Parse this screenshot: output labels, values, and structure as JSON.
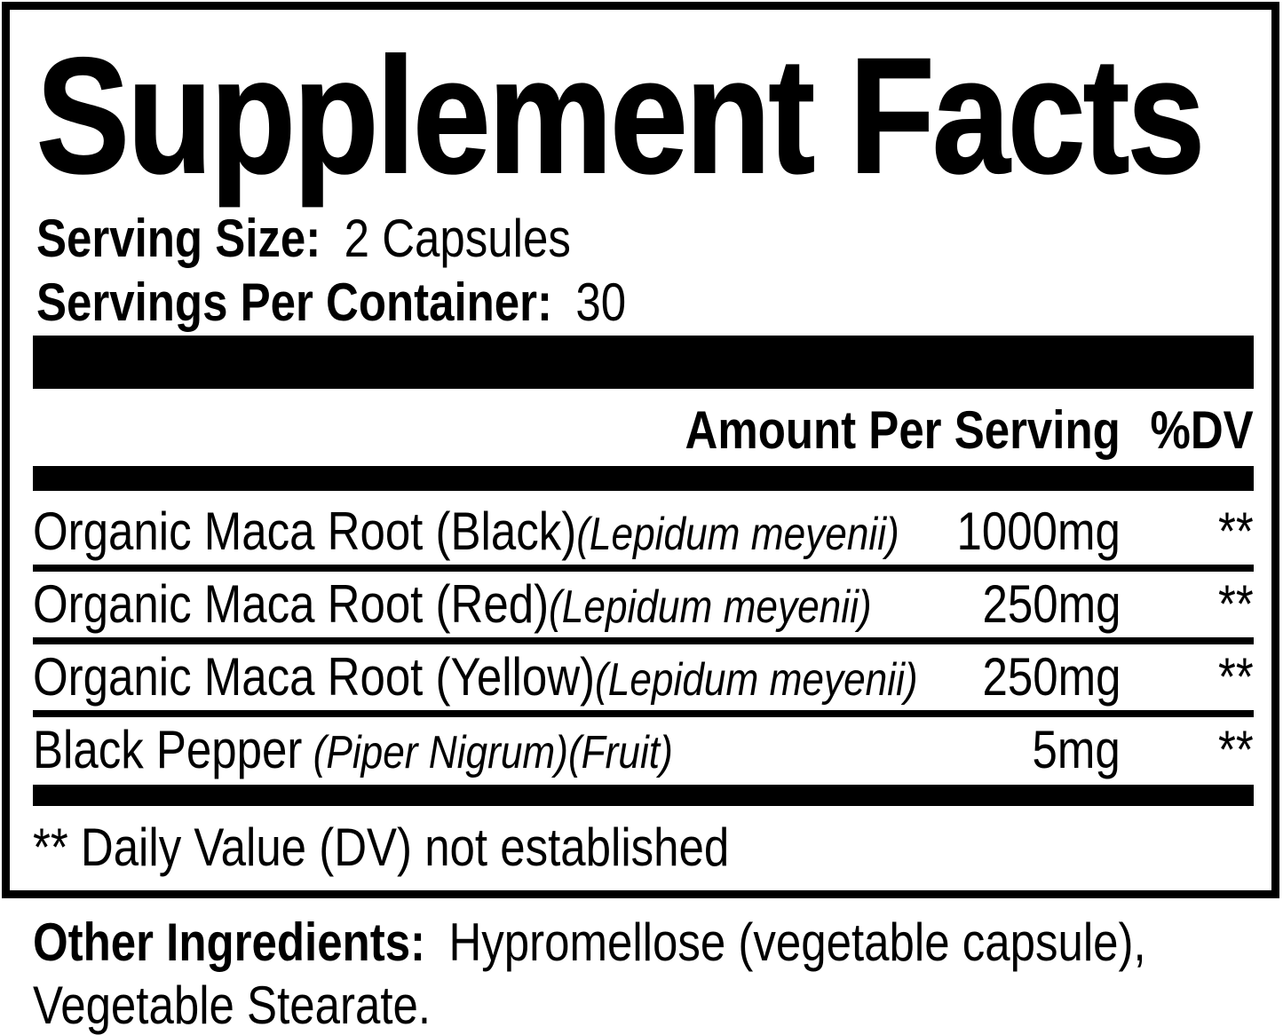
{
  "title": "Supplement Facts",
  "serving_info": {
    "serving_size_label": "Serving Size:",
    "serving_size_value": "2 Capsules",
    "servings_per_container_label": "Servings Per Container:",
    "servings_per_container_value": "30"
  },
  "table": {
    "header": {
      "amount": "Amount Per Serving",
      "dv": "%DV"
    },
    "rows": [
      {
        "name": "Organic Maca Root (Black)",
        "latin": "(Lepidum meyenii)",
        "amount": "1000mg",
        "dv": "**"
      },
      {
        "name": "Organic Maca Root (Red)",
        "latin": "(Lepidum meyenii)",
        "amount": "250mg",
        "dv": "**"
      },
      {
        "name": "Organic Maca Root (Yellow)",
        "latin": "(Lepidum meyenii)",
        "amount": "250mg",
        "dv": "**"
      },
      {
        "name": "Black Pepper",
        "latin": " (Piper Nigrum)(Fruit)",
        "amount": "5mg",
        "dv": "**"
      }
    ],
    "footnote": "** Daily Value (DV) not established"
  },
  "other_ingredients": {
    "label": "Other Ingredients:",
    "line1": "Hypromellose (vegetable capsule),",
    "line2": "Vegetable Stearate."
  },
  "colors": {
    "text": "#000000",
    "background": "#ffffff"
  }
}
